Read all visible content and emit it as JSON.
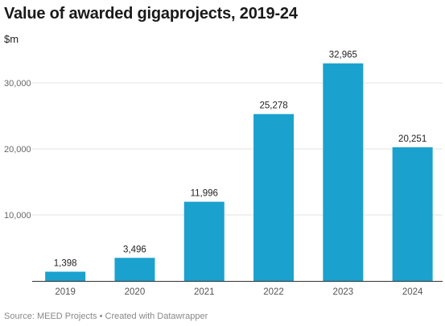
{
  "chart_data": {
    "type": "bar",
    "title": "Value of awarded gigaprojects, 2019-24",
    "ylabel": "$m",
    "xlabel": "",
    "categories": [
      "2019",
      "2020",
      "2021",
      "2022",
      "2023",
      "2024"
    ],
    "values": [
      1398,
      3496,
      11996,
      25278,
      32965,
      20251
    ],
    "value_labels": [
      "1,398",
      "3,496",
      "11,996",
      "25,278",
      "32,965",
      "20,251"
    ],
    "yticks": [
      10000,
      20000,
      30000
    ],
    "ytick_labels": [
      "10,000",
      "20,000",
      "30,000"
    ],
    "ylim": [
      0,
      35000
    ],
    "grid": true,
    "legend": "none",
    "bar_color": "#1ba1ce"
  },
  "footer": {
    "source": "Source: MEED Projects • Created with Datawrapper"
  }
}
